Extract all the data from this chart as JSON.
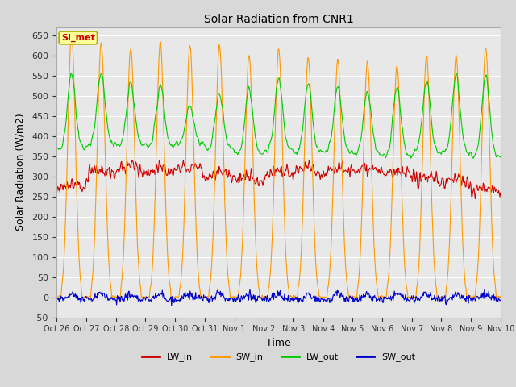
{
  "title": "Solar Radiation from CNR1",
  "xlabel": "Time",
  "ylabel": "Solar Radiation (W/m2)",
  "ylim": [
    -50,
    670
  ],
  "yticks": [
    -50,
    0,
    50,
    100,
    150,
    200,
    250,
    300,
    350,
    400,
    450,
    500,
    550,
    600,
    650
  ],
  "x_tick_labels": [
    "Oct 26",
    "Oct 27",
    "Oct 28",
    "Oct 29",
    "Oct 30",
    "Oct 31",
    "Nov 1",
    "Nov 2",
    "Nov 3",
    "Nov 4",
    "Nov 5",
    "Nov 6",
    "Nov 7",
    "Nov 8",
    "Nov 9",
    "Nov 10"
  ],
  "colors": {
    "LW_in": "#cc0000",
    "SW_in": "#ff9900",
    "LW_out": "#00cc00",
    "SW_out": "#0000cc"
  },
  "annotation_text": "SI_met",
  "annotation_color": "#cc0000",
  "annotation_bg": "#ffff99",
  "background_color": "#d8d8d8",
  "plot_bg": "#e8e8e8",
  "grid_color": "#ffffff",
  "figsize": [
    6.4,
    4.8
  ],
  "dpi": 100,
  "sw_in_peaks": [
    650,
    630,
    620,
    630,
    625,
    625,
    600,
    615,
    595,
    590,
    585,
    575,
    600,
    600,
    620
  ],
  "lw_out_peaks": [
    555,
    565,
    540,
    530,
    480,
    510,
    530,
    550,
    545,
    540,
    530,
    545,
    555,
    570,
    560
  ],
  "lw_in_base": [
    265,
    300,
    310,
    305,
    310,
    295,
    285,
    300,
    305,
    310,
    310,
    295,
    285,
    280,
    255
  ],
  "lw_out_base": [
    370,
    380,
    375,
    375,
    380,
    370,
    355,
    365,
    360,
    360,
    355,
    350,
    360,
    360,
    350
  ]
}
